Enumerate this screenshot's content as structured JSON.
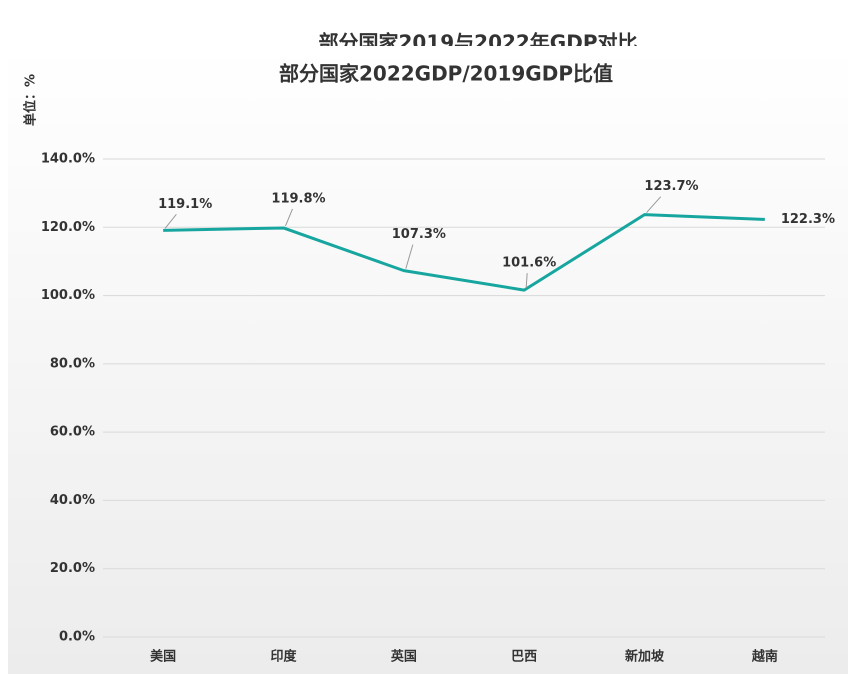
{
  "chart_data": {
    "type": "line",
    "header_title": "部分国家2019与2022年GDP对比",
    "title": "部分国家2022GDP/2019GDP比值",
    "y_label": "单位：%",
    "categories": [
      "美国",
      "印度",
      "英国",
      "巴西",
      "新加坡",
      "越南"
    ],
    "series": [
      {
        "name": "比值",
        "color": "#17a69f",
        "values": [
          119.1,
          119.8,
          107.3,
          101.6,
          123.7,
          122.3
        ],
        "value_labels": [
          "119.1%",
          "119.8%",
          "107.3%",
          "101.6%",
          "123.7%",
          "122.3%"
        ]
      }
    ],
    "ylim": [
      0,
      140
    ],
    "yticks": [
      {
        "value": 0,
        "label": "0.0%"
      },
      {
        "value": 20,
        "label": "20.0%"
      },
      {
        "value": 40,
        "label": "40.0%"
      },
      {
        "value": 60,
        "label": "60.0%"
      },
      {
        "value": 80,
        "label": "80.0%"
      },
      {
        "value": 100,
        "label": "100.0%"
      },
      {
        "value": 120,
        "label": "120.0%"
      },
      {
        "value": 140,
        "label": "140.0%"
      }
    ],
    "grid": true
  }
}
